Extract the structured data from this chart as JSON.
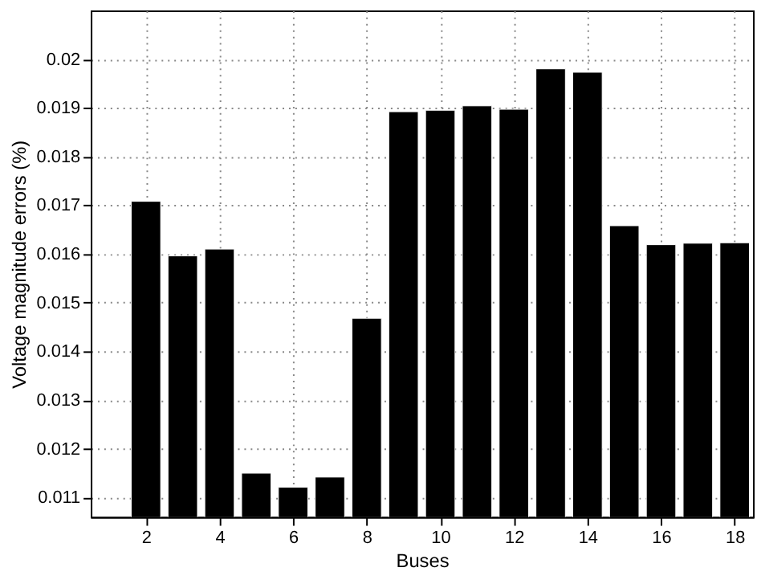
{
  "chart_data": {
    "type": "bar",
    "xlabel": "Buses",
    "ylabel": "Voltage magnitude errors (%)",
    "x": [
      2,
      3,
      4,
      5,
      6,
      7,
      8,
      9,
      10,
      11,
      12,
      13,
      14,
      15,
      16,
      17,
      18
    ],
    "series": [
      {
        "color": "#000000",
        "values": [
          0.01708,
          0.01596,
          0.0161,
          0.0115,
          0.01121,
          0.01142,
          0.01468,
          0.01892,
          0.01895,
          0.01904,
          0.01897,
          0.0198,
          0.01973,
          0.01658,
          0.01619,
          0.01622,
          0.01623
        ]
      }
    ],
    "xlim": [
      0.5,
      18.5
    ],
    "xticks": [
      2,
      4,
      6,
      8,
      10,
      12,
      14,
      16,
      18
    ],
    "ylim": [
      0.0106,
      0.021
    ],
    "yticks": [
      0.011,
      0.012,
      0.013,
      0.014,
      0.015,
      0.016,
      0.017,
      0.018,
      0.019,
      0.02
    ],
    "grid": true
  }
}
